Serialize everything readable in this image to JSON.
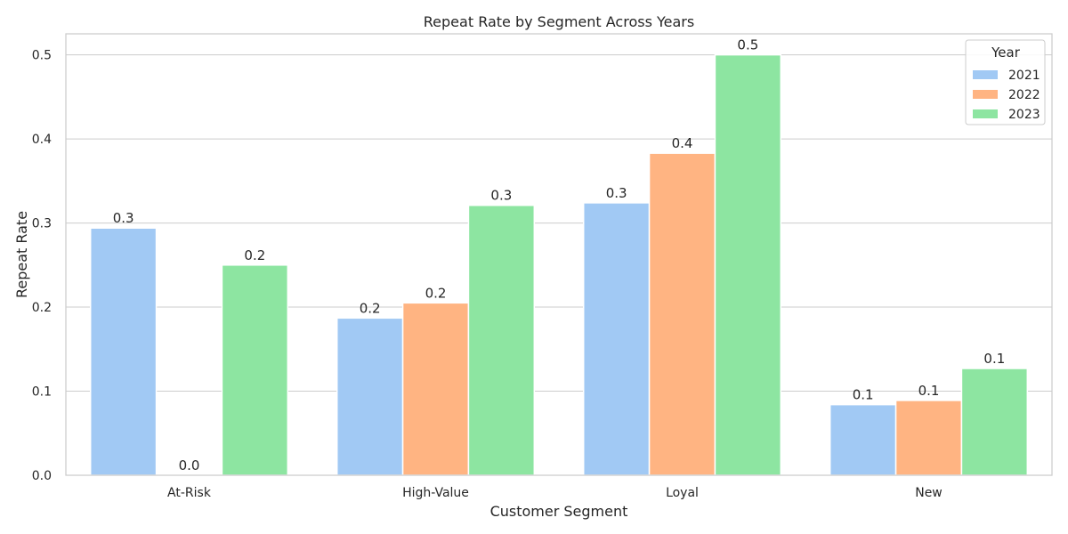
{
  "chart_data": {
    "type": "bar",
    "title": "Repeat Rate by Segment Across Years",
    "xlabel": "Customer Segment",
    "ylabel": "Repeat Rate",
    "categories": [
      "At-Risk",
      "High-Value",
      "Loyal",
      "New"
    ],
    "ylim": [
      0,
      0.525
    ],
    "yticks": [
      "0.0",
      "0.1",
      "0.2",
      "0.3",
      "0.4",
      "0.5"
    ],
    "grid": true,
    "legend": {
      "title": "Year",
      "placement": "top-right"
    },
    "series": [
      {
        "name": "2021",
        "color": "#a1c9f4",
        "values": [
          0.294,
          0.187,
          0.324,
          0.084
        ],
        "labels": [
          "0.3",
          "0.2",
          "0.3",
          "0.1"
        ]
      },
      {
        "name": "2022",
        "color": "#ffb482",
        "values": [
          0.0,
          0.205,
          0.383,
          0.089
        ],
        "labels": [
          "0.0",
          "0.2",
          "0.4",
          "0.1"
        ]
      },
      {
        "name": "2023",
        "color": "#8de5a1",
        "values": [
          0.25,
          0.321,
          0.5,
          0.127
        ],
        "labels": [
          "0.2",
          "0.3",
          "0.5",
          "0.1"
        ]
      }
    ]
  }
}
